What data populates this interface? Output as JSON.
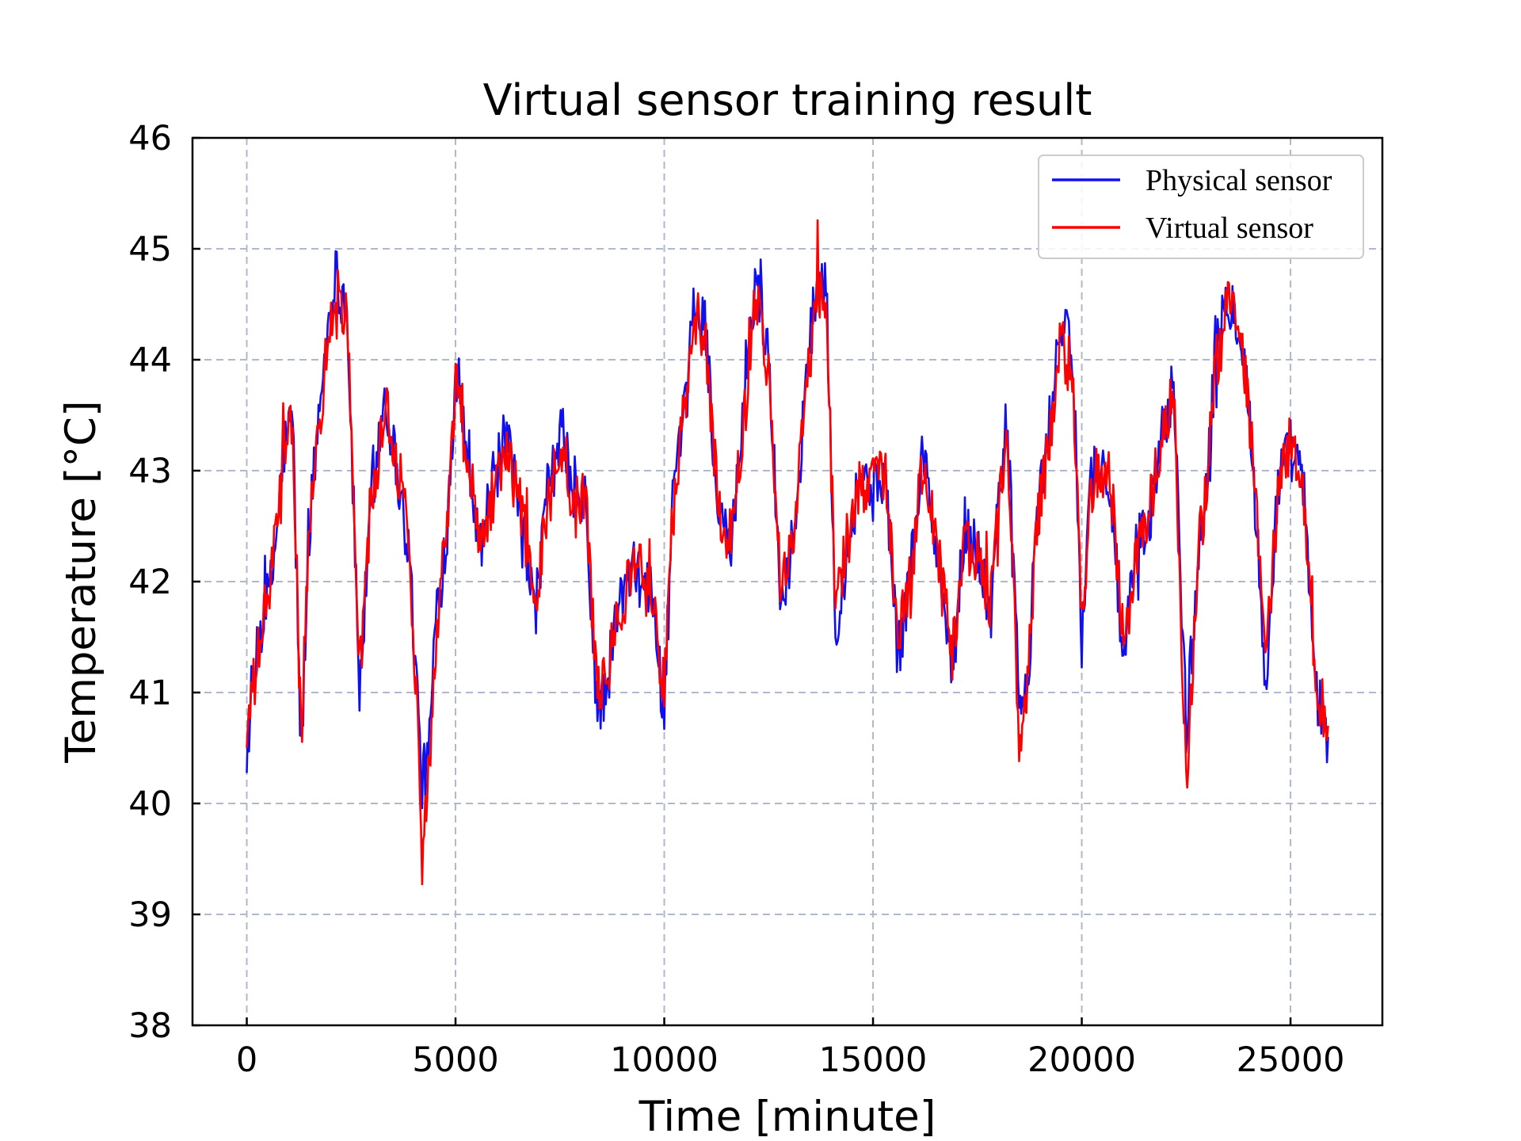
{
  "chart_data": {
    "type": "line",
    "title": "Virtual sensor training result",
    "xlabel": "Time [minute]",
    "ylabel": "Temperature [°C]",
    "xlim": [
      -1300,
      27200
    ],
    "ylim": [
      38,
      46
    ],
    "xticks": [
      0,
      5000,
      10000,
      15000,
      20000,
      25000
    ],
    "xtick_labels": [
      "0",
      "5000",
      "10000",
      "15000",
      "20000",
      "25000"
    ],
    "yticks": [
      38,
      39,
      40,
      41,
      42,
      43,
      44,
      45,
      46
    ],
    "ytick_labels": [
      "38",
      "39",
      "40",
      "41",
      "42",
      "43",
      "44",
      "45",
      "46"
    ],
    "grid": true,
    "legend_position": "top-right",
    "colors": {
      "physical": "#1010ee",
      "virtual": "#ff0000"
    },
    "series": [
      {
        "name": "Physical sensor",
        "color": "#1010ee",
        "x": [
          0,
          300,
          600,
          900,
          1100,
          1300,
          1500,
          1800,
          2100,
          2400,
          2700,
          3000,
          3300,
          3600,
          3900,
          4200,
          4350,
          4500,
          4800,
          5000,
          5300,
          5600,
          5900,
          6200,
          6600,
          6900,
          7200,
          7600,
          7800,
          8100,
          8400,
          8600,
          8900,
          9300,
          9700,
          10000,
          10200,
          10500,
          10700,
          11000,
          11300,
          11600,
          11900,
          12200,
          12500,
          12800,
          13100,
          13400,
          13700,
          13900,
          14100,
          14400,
          14700,
          15000,
          15300,
          15600,
          15900,
          16200,
          16600,
          16900,
          17200,
          17500,
          17800,
          18200,
          18500,
          18700,
          18900,
          19200,
          19500,
          19800,
          20000,
          20200,
          20400,
          20700,
          21000,
          21300,
          21600,
          21900,
          22200,
          22500,
          22800,
          23000,
          23200,
          23500,
          23800,
          24000,
          24200,
          24400,
          24700,
          25000,
          25300,
          25600,
          25900
        ],
        "y": [
          40.5,
          41.5,
          42.0,
          43.2,
          43.5,
          40.4,
          42.5,
          43.8,
          44.8,
          44.5,
          41.0,
          42.8,
          43.7,
          43.0,
          42.2,
          40.2,
          40.4,
          41.5,
          42.5,
          43.9,
          43.2,
          42.3,
          42.9,
          43.3,
          42.5,
          41.7,
          42.8,
          43.4,
          42.7,
          42.7,
          40.8,
          41.0,
          41.8,
          42.1,
          41.9,
          40.8,
          42.7,
          43.5,
          44.5,
          44.3,
          42.5,
          42.3,
          43.5,
          44.8,
          44.0,
          41.8,
          42.4,
          43.8,
          44.9,
          44.5,
          41.6,
          42.3,
          43.0,
          42.8,
          43.0,
          41.3,
          42.1,
          43.2,
          42.0,
          41.2,
          42.5,
          42.3,
          41.7,
          43.5,
          41.0,
          40.9,
          42.5,
          43.3,
          44.4,
          43.9,
          41.5,
          42.9,
          43.1,
          42.8,
          41.2,
          42.3,
          42.5,
          43.3,
          43.8,
          40.7,
          42.2,
          43.0,
          44.0,
          44.6,
          44.3,
          43.6,
          42.4,
          41.0,
          42.9,
          43.2,
          42.9,
          41.0,
          40.6
        ]
      },
      {
        "name": "Virtual sensor",
        "color": "#ff0000",
        "x": [
          0,
          300,
          600,
          900,
          1100,
          1300,
          1500,
          1800,
          2100,
          2400,
          2700,
          3000,
          3300,
          3600,
          3900,
          4200,
          4350,
          4500,
          4800,
          5000,
          5300,
          5600,
          5900,
          6200,
          6600,
          6900,
          7200,
          7600,
          7800,
          8100,
          8400,
          8600,
          8900,
          9300,
          9700,
          10000,
          10200,
          10500,
          10700,
          11000,
          11300,
          11600,
          11900,
          12200,
          12500,
          12800,
          13100,
          13400,
          13700,
          13900,
          14100,
          14400,
          14700,
          15000,
          15300,
          15600,
          15900,
          16200,
          16600,
          16900,
          17200,
          17500,
          17800,
          18200,
          18500,
          18700,
          18900,
          19200,
          19500,
          19800,
          20000,
          20200,
          20400,
          20700,
          21000,
          21300,
          21600,
          21900,
          22200,
          22500,
          22800,
          23000,
          23200,
          23500,
          23800,
          24000,
          24200,
          24400,
          24700,
          25000,
          25300,
          25600,
          25900
        ],
        "y": [
          40.6,
          41.4,
          42.1,
          43.1,
          43.4,
          40.6,
          42.4,
          43.7,
          44.6,
          44.4,
          41.2,
          42.7,
          43.6,
          43.1,
          42.3,
          39.8,
          40.2,
          41.4,
          42.6,
          43.8,
          43.1,
          42.4,
          42.8,
          43.2,
          42.6,
          41.8,
          42.7,
          43.3,
          42.6,
          42.8,
          41.0,
          41.1,
          41.7,
          42.2,
          41.8,
          41.1,
          42.6,
          43.6,
          44.4,
          44.2,
          42.6,
          42.4,
          43.4,
          44.6,
          43.9,
          41.9,
          42.5,
          43.7,
          44.7,
          44.3,
          41.8,
          42.4,
          42.9,
          42.9,
          42.9,
          41.5,
          42.0,
          43.1,
          42.1,
          41.3,
          42.4,
          42.2,
          41.8,
          43.4,
          40.6,
          41.0,
          42.4,
          43.2,
          44.2,
          43.8,
          41.6,
          42.8,
          43.0,
          42.9,
          41.4,
          42.2,
          42.6,
          43.2,
          43.7,
          40.2,
          42.3,
          42.9,
          43.9,
          44.5,
          44.2,
          43.5,
          42.5,
          41.2,
          42.8,
          43.3,
          42.8,
          41.1,
          40.7
        ]
      }
    ]
  }
}
